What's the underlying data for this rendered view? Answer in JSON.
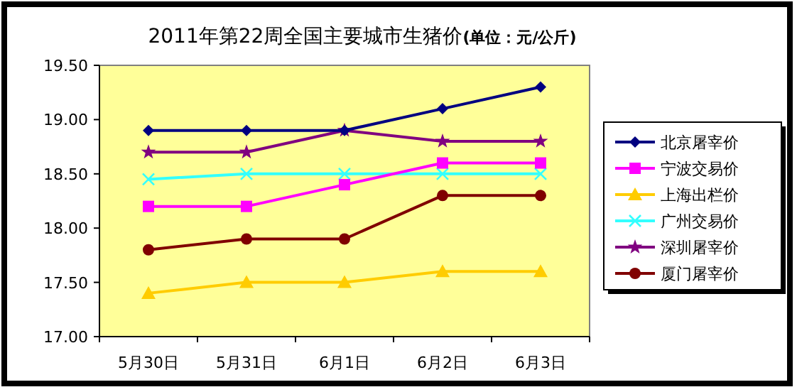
{
  "chart_data": {
    "type": "line",
    "title": "2011年第22周全国主要城市生猪价**(单位：元/公斤)**",
    "categories": [
      "5月30日",
      "5月31日",
      "6月1日",
      "6月2日",
      "6月3日"
    ],
    "ylim": [
      17.0,
      19.5
    ],
    "yticks": [
      {
        "value": 17.0,
        "label": "17.00"
      },
      {
        "value": 17.5,
        "label": "17.50"
      },
      {
        "value": 18.0,
        "label": "18.00"
      },
      {
        "value": 18.5,
        "label": "18.50"
      },
      {
        "value": 19.0,
        "label": "19.00"
      },
      {
        "value": 19.5,
        "label": "19.50"
      }
    ],
    "legend": "right",
    "series": [
      {
        "name": "北京屠宰价",
        "color": "#000080",
        "marker": "diamond",
        "values": [
          18.9,
          18.9,
          18.9,
          19.1,
          19.3
        ]
      },
      {
        "name": "宁波交易价",
        "color": "#ff00ff",
        "marker": "square",
        "values": [
          18.2,
          18.2,
          18.4,
          18.6,
          18.6
        ]
      },
      {
        "name": "上海出栏价",
        "color": "#ffcc00",
        "marker": "triangle",
        "values": [
          17.4,
          17.5,
          17.5,
          17.6,
          17.6
        ]
      },
      {
        "name": "广州交易价",
        "color": "#33ffff",
        "marker": "cross",
        "values": [
          18.45,
          18.5,
          18.5,
          18.5,
          18.5
        ]
      },
      {
        "name": "深圳屠宰价",
        "color": "#800080",
        "marker": "star",
        "values": [
          18.7,
          18.7,
          18.9,
          18.8,
          18.8
        ]
      },
      {
        "name": "厦门屠宰价",
        "color": "#800000",
        "marker": "circle",
        "values": [
          17.8,
          17.9,
          17.9,
          18.3,
          18.3
        ]
      }
    ]
  }
}
